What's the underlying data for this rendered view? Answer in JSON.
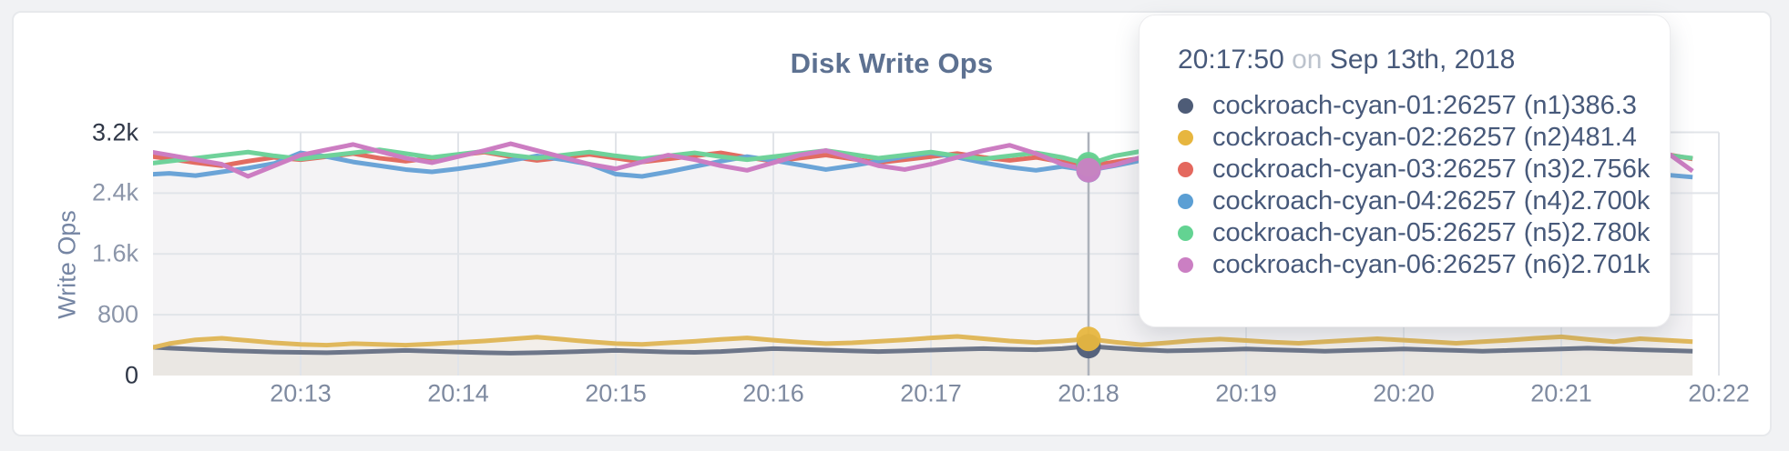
{
  "page": {
    "background": "#f1f2f4",
    "card_background": "#ffffff"
  },
  "chart": {
    "title": "Disk Write Ops",
    "y_axis_title": "Write Ops"
  },
  "tooltip": {
    "time": "20:17:50",
    "conjunction": "on",
    "date": "Sep 13th, 2018",
    "rows": [
      {
        "label": "cockroach-cyan-01:26257 (n1)",
        "value": "386.3"
      },
      {
        "label": "cockroach-cyan-02:26257 (n2)",
        "value": "481.4"
      },
      {
        "label": "cockroach-cyan-03:26257 (n3)",
        "value": "2.756k"
      },
      {
        "label": "cockroach-cyan-04:26257 (n4)",
        "value": "2.700k"
      },
      {
        "label": "cockroach-cyan-05:26257 (n5)",
        "value": "2.780k"
      },
      {
        "label": "cockroach-cyan-06:26257 (n6)",
        "value": "2.701k"
      }
    ]
  },
  "chart_data": {
    "type": "line",
    "title": "Disk Write Ops",
    "xlabel": "",
    "ylabel": "Write Ops",
    "ylim": [
      0,
      3200
    ],
    "y_ticks": [
      0,
      800,
      1600,
      2400,
      3200
    ],
    "y_tick_labels": [
      "0",
      "800",
      "1.6k",
      "2.4k",
      "3.2k"
    ],
    "x_tick_labels": [
      "20:13",
      "20:14",
      "20:15",
      "20:16",
      "20:17",
      "20:18",
      "20:19",
      "20:20",
      "20:21",
      "20:22"
    ],
    "x_start": "20:12:00",
    "x_step_seconds": 10,
    "grid": true,
    "legend_position": "tooltip",
    "hover": {
      "index": 36,
      "time": "20:17:50",
      "date": "Sep 13th, 2018",
      "values": [
        386.3,
        481.4,
        2756,
        2700,
        2780,
        2701
      ]
    },
    "guideline_color": "#adb2bb",
    "gridline_color": "#e1e4e9",
    "series": [
      {
        "name": "cockroach-cyan-01:26257 (n1)",
        "color": "#4e5c77",
        "line_color": "#6d7689",
        "values": [
          380,
          360,
          345,
          330,
          320,
          310,
          305,
          300,
          310,
          320,
          330,
          320,
          310,
          300,
          295,
          300,
          310,
          320,
          330,
          320,
          310,
          305,
          315,
          335,
          355,
          345,
          335,
          325,
          315,
          325,
          335,
          345,
          355,
          345,
          340,
          355,
          386.3,
          360,
          340,
          325,
          330,
          340,
          350,
          340,
          330,
          320,
          330,
          340,
          350,
          340,
          330,
          320,
          330,
          340,
          350,
          360,
          350,
          340,
          330,
          320
        ]
      },
      {
        "name": "cockroach-cyan-02:26257 (n2)",
        "color": "#e7b63f",
        "line_color": "#e0b85c",
        "values": [
          340,
          420,
          470,
          490,
          460,
          430,
          410,
          400,
          420,
          410,
          400,
          415,
          435,
          455,
          480,
          505,
          475,
          445,
          420,
          410,
          430,
          450,
          475,
          495,
          465,
          440,
          420,
          430,
          450,
          470,
          495,
          515,
          485,
          455,
          435,
          455,
          481.4,
          440,
          405,
          430,
          460,
          480,
          460,
          440,
          425,
          445,
          465,
          485,
          465,
          445,
          425,
          445,
          465,
          490,
          510,
          475,
          445,
          485,
          465,
          445
        ]
      },
      {
        "name": "cockroach-cyan-03:26257 (n3)",
        "color": "#e4685e",
        "line_color": "#e26c61",
        "values": [
          2900,
          2850,
          2800,
          2760,
          2820,
          2870,
          2840,
          2880,
          2920,
          2860,
          2820,
          2860,
          2900,
          2940,
          2880,
          2830,
          2870,
          2910,
          2860,
          2810,
          2850,
          2890,
          2930,
          2870,
          2820,
          2860,
          2900,
          2850,
          2800,
          2840,
          2880,
          2920,
          2870,
          2830,
          2870,
          2810,
          2756,
          2810,
          2860,
          2900,
          2850,
          2800,
          2840,
          2880,
          2920,
          2860,
          2810,
          2850,
          2890,
          2930,
          2870,
          2820,
          2860,
          2900,
          2840,
          2790,
          2830,
          2870,
          2910,
          2850
        ]
      },
      {
        "name": "cockroach-cyan-04:26257 (n4)",
        "color": "#5b9fd4",
        "line_color": "#6ba4d7",
        "values": [
          2640,
          2660,
          2630,
          2680,
          2730,
          2790,
          2930,
          2880,
          2810,
          2760,
          2710,
          2680,
          2720,
          2770,
          2830,
          2890,
          2840,
          2780,
          2650,
          2620,
          2680,
          2750,
          2820,
          2880,
          2830,
          2770,
          2710,
          2760,
          2820,
          2880,
          2930,
          2870,
          2800,
          2740,
          2700,
          2750,
          2700,
          2760,
          2830,
          2890,
          2840,
          2780,
          2720,
          2680,
          2740,
          2800,
          2860,
          2910,
          2850,
          2790,
          2730,
          2690,
          2750,
          2810,
          2870,
          2920,
          2860,
          2800,
          2640,
          2610
        ]
      },
      {
        "name": "cockroach-cyan-05:26257 (n5)",
        "color": "#63d392",
        "line_color": "#6fd29a",
        "values": [
          2780,
          2820,
          2860,
          2900,
          2940,
          2890,
          2850,
          2890,
          2930,
          2970,
          2920,
          2870,
          2910,
          2950,
          2900,
          2860,
          2900,
          2940,
          2890,
          2850,
          2890,
          2930,
          2880,
          2840,
          2880,
          2920,
          2960,
          2910,
          2860,
          2900,
          2940,
          2890,
          2850,
          2890,
          2930,
          2870,
          2780,
          2890,
          2950,
          3010,
          2960,
          2900,
          2860,
          2900,
          2940,
          2980,
          2930,
          2880,
          2840,
          2880,
          2920,
          2960,
          2910,
          2870,
          2830,
          2870,
          2910,
          2950,
          2900,
          2860
        ]
      },
      {
        "name": "cockroach-cyan-06:26257 (n6)",
        "color": "#cb7fc3",
        "line_color": "#cc7dc2",
        "values": [
          2960,
          2900,
          2840,
          2780,
          2620,
          2760,
          2900,
          2970,
          3040,
          2950,
          2860,
          2800,
          2880,
          2960,
          3050,
          2960,
          2870,
          2780,
          2720,
          2810,
          2900,
          2840,
          2760,
          2700,
          2800,
          2900,
          2960,
          2860,
          2760,
          2710,
          2780,
          2870,
          2960,
          3030,
          2920,
          2780,
          2701,
          2770,
          2870,
          2960,
          3030,
          2930,
          2830,
          2760,
          2860,
          2950,
          2890,
          2800,
          2740,
          2700,
          2800,
          2890,
          2960,
          2860,
          2760,
          2810,
          2900,
          3040,
          2940,
          2690
        ]
      }
    ]
  }
}
